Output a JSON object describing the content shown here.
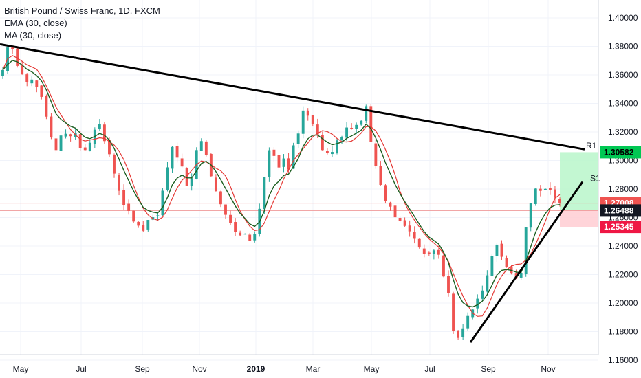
{
  "header": {
    "symbol_line": "British Pound / Swiss Franc, 1D, FXCM",
    "ema_label": "EMA (30, close)",
    "ma_label": "MA (30, close)"
  },
  "colors": {
    "up": "#26a69a",
    "down": "#ef5350",
    "candle_down": "#ef5350",
    "candle_up": "#26a69a",
    "ema": "#1b5e20",
    "ma": "#e53935",
    "trendline": "#000000",
    "target_zone": "#b9f6ca",
    "stop_zone": "#ffcdd2",
    "price_axis_text": "#131722",
    "grid": "#f0f3fa"
  },
  "chart_data": {
    "type": "candlestick",
    "title": "British Pound / Swiss Franc, 1D, FXCM",
    "ylim": [
      1.1475,
      1.4125
    ],
    "y_ticks": [
      "1.40000",
      "1.38000",
      "1.36000",
      "1.34000",
      "1.32000",
      "1.30000",
      "1.28000",
      "1.26000",
      "1.24000",
      "1.22000",
      "1.20000",
      "1.18000",
      "1.16000"
    ],
    "x_ticks": [
      "May",
      "Jul",
      "Sep",
      "Nov",
      "2019",
      "Mar",
      "May",
      "Jul",
      "Sep",
      "Nov"
    ],
    "grid": true,
    "price_labels": [
      {
        "text": "1.30582",
        "value": 1.30582,
        "style": "target"
      },
      {
        "text": "1.27008",
        "value": 1.27008,
        "style": "current"
      },
      {
        "text": "1.26488",
        "value": 1.26488,
        "style": "entry"
      },
      {
        "text": "1.25345",
        "value": 1.25345,
        "style": "stop"
      }
    ],
    "annotations": [
      {
        "text": "R1"
      },
      {
        "text": "S1"
      }
    ],
    "series_close": [
      1.3634,
      1.3792,
      1.3783,
      1.3663,
      1.3604,
      1.3548,
      1.3567,
      1.3516,
      1.3446,
      1.3307,
      1.3161,
      1.3073,
      1.3175,
      1.3187,
      1.317,
      1.319,
      1.3086,
      1.3073,
      1.3124,
      1.3216,
      1.3253,
      1.3136,
      1.3044,
      1.2908,
      1.2787,
      1.2689,
      1.2646,
      1.2572,
      1.2543,
      1.2507,
      1.2583,
      1.2602,
      1.2615,
      1.2788,
      1.2952,
      1.3095,
      1.302,
      1.2958,
      1.2822,
      1.2876,
      1.3073,
      1.3136,
      1.304,
      1.289,
      1.2785,
      1.2693,
      1.2619,
      1.256,
      1.2498,
      1.2475,
      1.2486,
      1.2438,
      1.2486,
      1.2661,
      1.2882,
      1.3072,
      1.3032,
      1.2951,
      1.3014,
      1.2936,
      1.3106,
      1.3189,
      1.335,
      1.3314,
      1.3253,
      1.3183,
      1.3073,
      1.3055,
      1.306,
      1.3141,
      1.3163,
      1.3231,
      1.3224,
      1.3249,
      1.3278,
      1.3381,
      1.3129,
      1.296,
      1.2829,
      1.2714,
      1.2676,
      1.2602,
      1.2576,
      1.2541,
      1.2503,
      1.2451,
      1.239,
      1.2345,
      1.2347,
      1.237,
      1.2339,
      1.2187,
      1.2069,
      1.1806,
      1.1756,
      1.1823,
      1.191,
      1.1955,
      1.2031,
      1.2088,
      1.2195,
      1.2331,
      1.241,
      1.2325,
      1.2254,
      1.2211,
      1.2177,
      1.2212,
      1.253,
      1.2702,
      1.2803,
      1.2787,
      1.2801,
      1.2792,
      1.2739,
      1.2701
    ]
  }
}
